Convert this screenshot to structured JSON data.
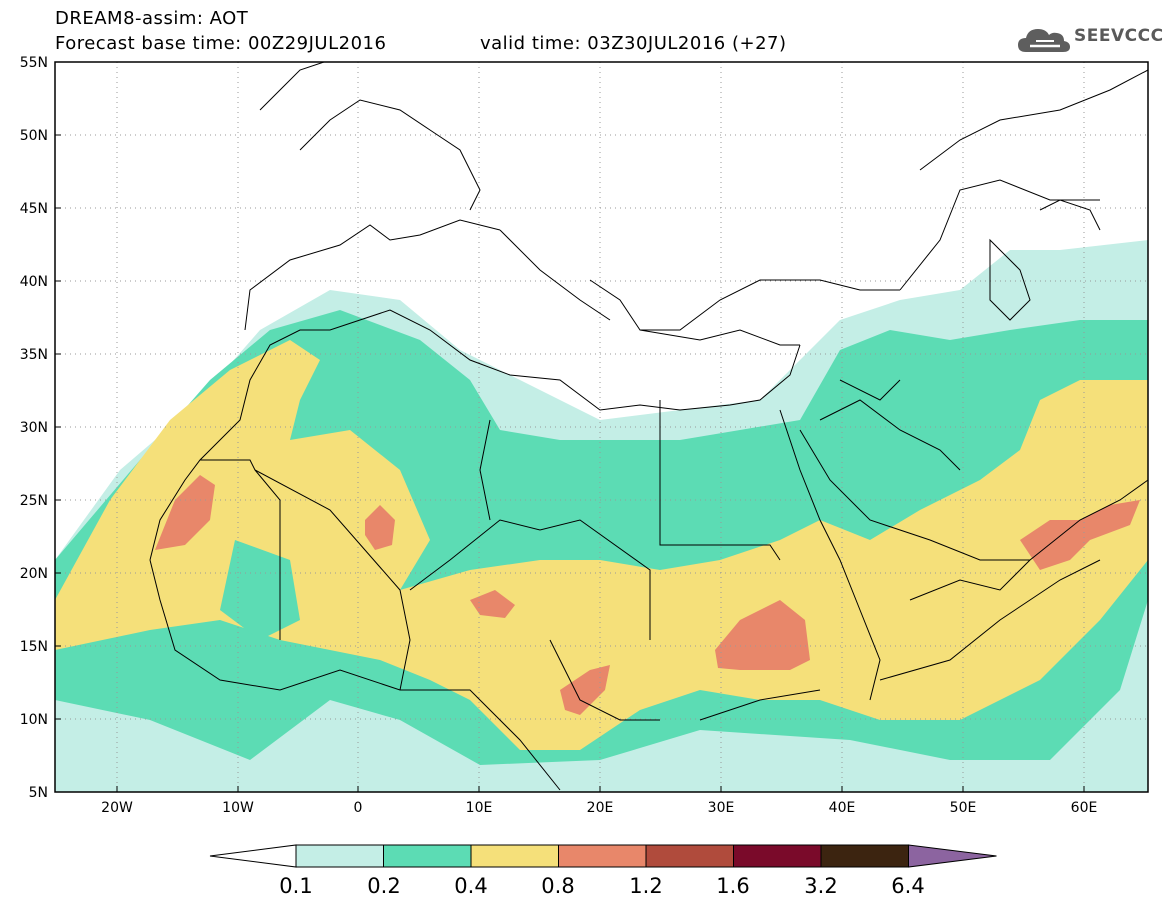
{
  "title": {
    "line1": "DREAM8-assim: AOT",
    "line2": "Forecast base time: 00Z29JUL2016",
    "valid": "valid time: 03Z30JUL2016 (+27)"
  },
  "logo": {
    "text": "SEEVCCC",
    "icon": "cloud-icon"
  },
  "map": {
    "lat_labels": [
      "55N",
      "50N",
      "45N",
      "40N",
      "35N",
      "30N",
      "25N",
      "20N",
      "15N",
      "10N",
      "5N"
    ],
    "lon_labels": [
      "20W",
      "10W",
      "0",
      "10E",
      "20E",
      "30E",
      "40E",
      "50E",
      "60E"
    ],
    "lon_range": [
      -25,
      65
    ],
    "lat_range": [
      5,
      55
    ],
    "grid": "dotted"
  },
  "colorbar": {
    "labels": [
      "0.1",
      "0.2",
      "0.4",
      "0.8",
      "1.2",
      "1.6",
      "3.2",
      "6.4"
    ],
    "colors": [
      "#ffffff",
      "#c4eee6",
      "#5cdcb4",
      "#f5e07a",
      "#e8876a",
      "#b04b3c",
      "#7a0a2a",
      "#3c2410",
      "#8c64a0"
    ]
  }
}
